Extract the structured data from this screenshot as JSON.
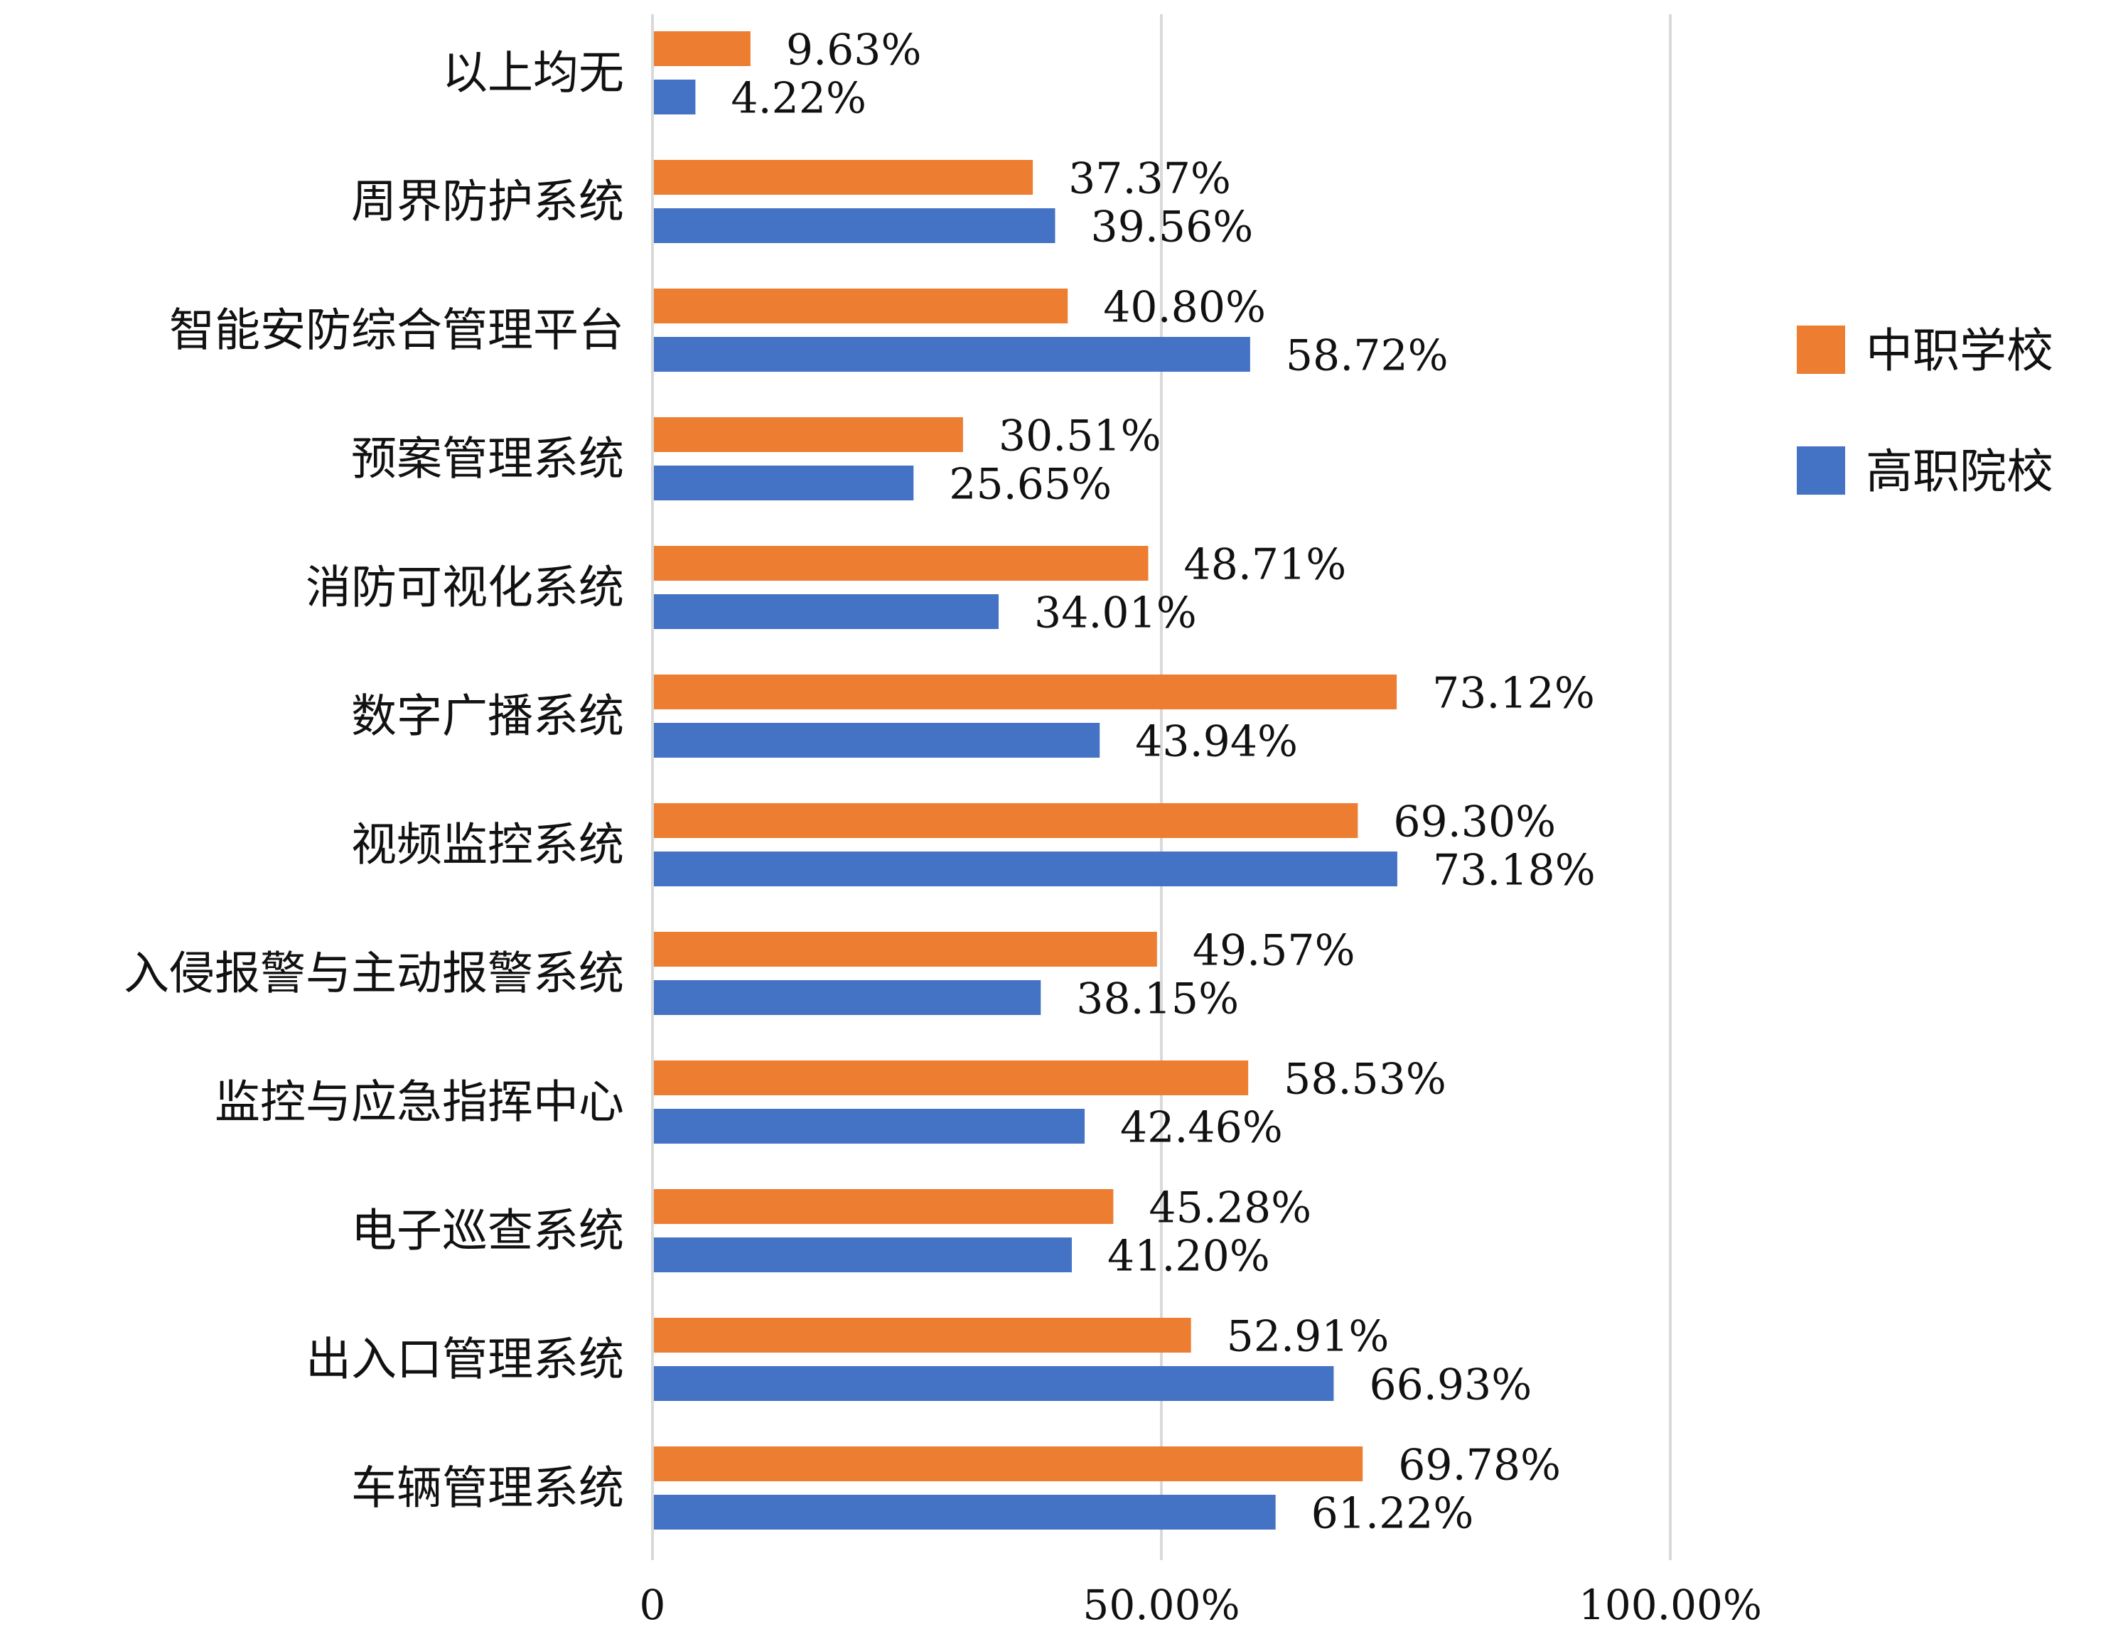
{
  "chart_data": {
    "type": "bar",
    "orientation": "horizontal",
    "categories": [
      "以上均无",
      "周界防护系统",
      "智能安防综合管理平台",
      "预案管理系统",
      "消防可视化系统",
      "数字广播系统",
      "视频监控系统",
      "入侵报警与主动报警系统",
      "监控与应急指挥中心",
      "电子巡查系统",
      "出入口管理系统",
      "车辆管理系统"
    ],
    "series": [
      {
        "name": "中职学校",
        "color": "#ED7D31",
        "values": [
          9.63,
          37.37,
          40.8,
          30.51,
          48.71,
          73.12,
          69.3,
          49.57,
          58.53,
          45.28,
          52.91,
          69.78
        ],
        "labels": [
          "9.63%",
          "37.37%",
          "40.80%",
          "30.51%",
          "48.71%",
          "73.12%",
          "69.30%",
          "49.57%",
          "58.53%",
          "45.28%",
          "52.91%",
          "69.78%"
        ]
      },
      {
        "name": "高职院校",
        "color": "#4472C4",
        "values": [
          4.22,
          39.56,
          58.72,
          25.65,
          34.01,
          43.94,
          73.18,
          38.15,
          42.46,
          41.2,
          66.93,
          61.22
        ],
        "labels": [
          "4.22%",
          "39.56%",
          "58.72%",
          "25.65%",
          "34.01%",
          "43.94%",
          "73.18%",
          "38.15%",
          "42.46%",
          "41.20%",
          "66.93%",
          "61.22%"
        ]
      }
    ],
    "xlim": [
      0,
      100
    ],
    "x_ticks": [
      0,
      50,
      100
    ],
    "x_tick_labels": [
      "0",
      "50.00%",
      "100.00%"
    ],
    "grid": true,
    "legend_position": "right"
  }
}
